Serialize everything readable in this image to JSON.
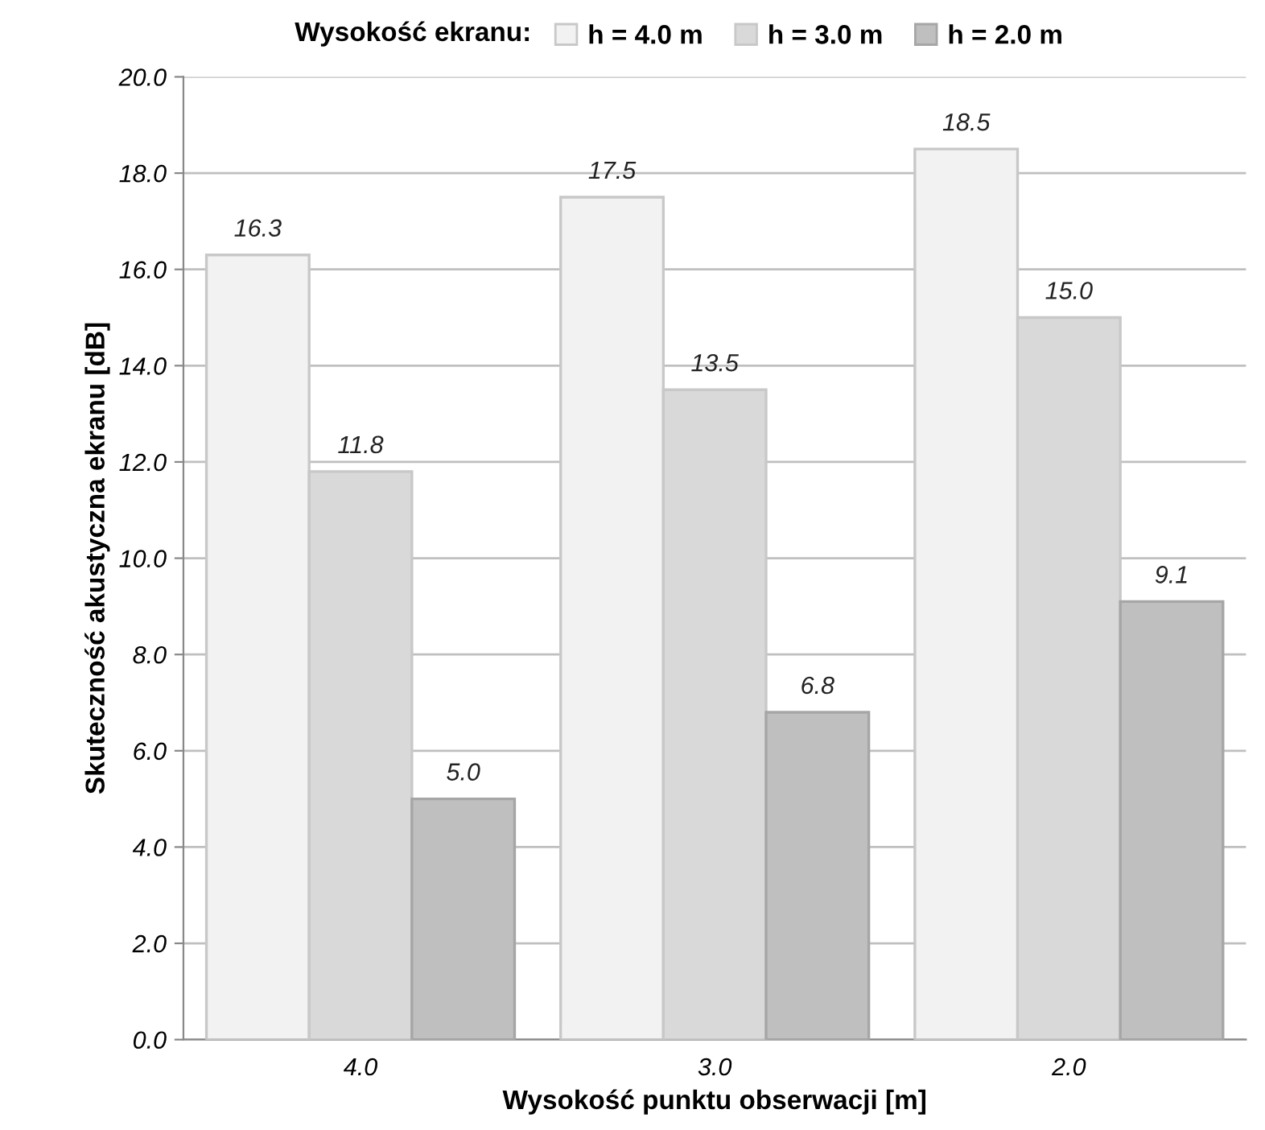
{
  "chart_data": {
    "type": "bar",
    "xlabel": "Wysokość punktu obserwacji [m]",
    "ylabel": "Skuteczność akustyczna ekranu [dB]",
    "legend_title": "Wysokość ekranu:",
    "categories": [
      "4.0",
      "3.0",
      "2.0"
    ],
    "series": [
      {
        "name": "h = 4.0 m",
        "color": "#f2f2f2",
        "values": [
          16.3,
          17.5,
          18.5
        ],
        "value_labels": [
          "16.3",
          "17.5",
          "18.5"
        ]
      },
      {
        "name": "h = 3.0 m",
        "color": "#d9d9d9",
        "values": [
          11.8,
          13.5,
          15
        ],
        "value_labels": [
          "11.8",
          "13.5",
          "15.0"
        ]
      },
      {
        "name": "h = 2.0 m",
        "color": "#bfbfbf",
        "values": [
          5,
          6.8,
          9.1
        ],
        "value_labels": [
          "5.0",
          "6.8",
          "9.1"
        ]
      }
    ],
    "ylim": [
      0,
      20
    ],
    "yticks": [
      {
        "value": 0,
        "label": "0.0"
      },
      {
        "value": 2,
        "label": "2.0"
      },
      {
        "value": 4,
        "label": "4.0"
      },
      {
        "value": 6,
        "label": "6.0"
      },
      {
        "value": 8,
        "label": "8.0"
      },
      {
        "value": 10,
        "label": "10.0"
      },
      {
        "value": 12,
        "label": "12.0"
      },
      {
        "value": 14,
        "label": "14.0"
      },
      {
        "value": 16,
        "label": "16.0"
      },
      {
        "value": 18,
        "label": "18.0"
      },
      {
        "value": 20,
        "label": "20.0"
      }
    ],
    "grid": "y",
    "legend": "top"
  }
}
